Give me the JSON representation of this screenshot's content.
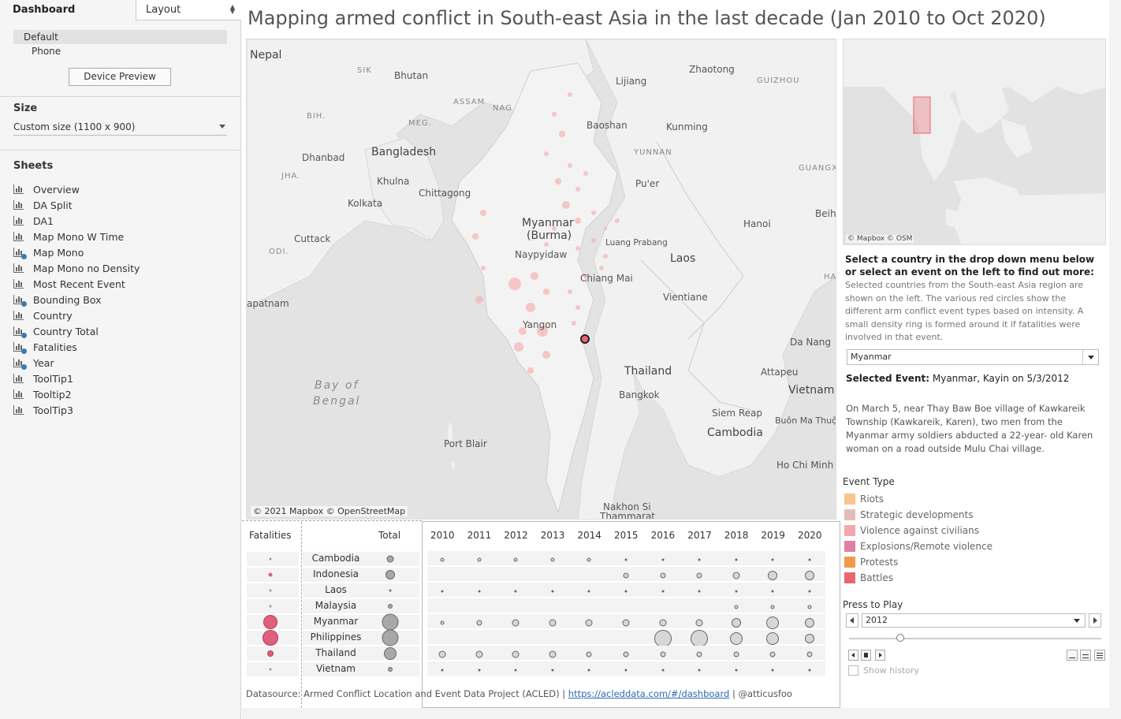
{
  "authoring": {
    "tab_dashboard": "Dashboard",
    "tab_layout": "Layout",
    "devices": [
      "Default",
      "Phone"
    ],
    "device_preview": "Device Preview",
    "size_heading": "Size",
    "size_value": "Custom size (1100 x 900)",
    "sheets_heading": "Sheets",
    "sheets": [
      {
        "label": "Overview",
        "used": false
      },
      {
        "label": "DA Split",
        "used": false
      },
      {
        "label": "DA1",
        "used": false
      },
      {
        "label": "Map Mono W Time",
        "used": false
      },
      {
        "label": "Map Mono",
        "used": true
      },
      {
        "label": "Map Mono no Density",
        "used": false
      },
      {
        "label": "Most Recent Event",
        "used": false
      },
      {
        "label": "Bounding Box",
        "used": true
      },
      {
        "label": "Country",
        "used": false
      },
      {
        "label": "Country Total",
        "used": true
      },
      {
        "label": "Fatalities",
        "used": true
      },
      {
        "label": "Year",
        "used": true
      },
      {
        "label": "ToolTip1",
        "used": false
      },
      {
        "label": "Tooltip2",
        "used": false
      },
      {
        "label": "ToolTip3",
        "used": false
      }
    ]
  },
  "dashboard": {
    "title": "Mapping armed conflict in South-east Asia in the last decade (Jan 2010 to Oct 2020)"
  },
  "map": {
    "labels": {
      "nepal": "Nepal",
      "sikkim": "SIK",
      "bhutan": "Bhutan",
      "assam": "ASSAM",
      "nagaland": "NAG",
      "bihar": "BIH.",
      "meghalaya": "MEG.",
      "bangladesh": "Bangladesh",
      "dhanbad": "Dhanbad",
      "jharkhand": "JHA.",
      "khulna": "Khulna",
      "chittagong": "Chittagong",
      "kolkata": "Kolkata",
      "cuttack": "Cuttack",
      "odisha": "ODI.",
      "apatnam": "apatnam",
      "myanmar": "Myanmar",
      "burma": "(Burma)",
      "naypyidaw": "Naypyidaw",
      "yangon": "Yangon",
      "lijiang": "Lijiang",
      "zhaotong": "Zhaotong",
      "guizhou": "GUIZHOU",
      "baoshan": "Baoshan",
      "kunming": "Kunming",
      "yunnan": "YUNNAN",
      "guangxi": "GUANGX",
      "puer": "Pu'er",
      "beihai": "Beih",
      "hanoi": "Hanoi",
      "laos": "Laos",
      "luang": "Luang Prabang",
      "chiangmai": "Chiang Mai",
      "vientiane": "Vientiane",
      "ha": "HA",
      "danang": "Da Nang",
      "thailand": "Thailand",
      "bangkok": "Bangkok",
      "attapeu": "Attapeu",
      "vietnam": "Vietnam",
      "siemreap": "Siem Reap",
      "cambodia": "Cambodia",
      "buonmathuot": "Buôn Ma Thuột",
      "hochiminh": "Ho Chi Minh",
      "portblair": "Port Blair",
      "nakhonsi": "Nakhon Si",
      "thammarat": "Thammarat",
      "bay": "Bay of",
      "bengal": "Bengal"
    },
    "attribution": "© 2021 Mapbox © OpenStreetMap"
  },
  "inset": {
    "attribution": "© Mapbox © OSM"
  },
  "info": {
    "prompt": "Select a country in the drop down menu below or select an event on the left to find out more:",
    "description": "Selected countries from the South-east Asia region are shown on the left. The various red circles show the different arm conflict event types based on intensity. A small density ring is formed around it if fatalities were involved in that event.",
    "country_selected": "Myanmar",
    "selected_event_label": "Selected Event:",
    "selected_event_value": "Myanmar, Kayin on 5/3/2012",
    "event_description": "On March 5, near Thay Baw Boe village of Kawkareik Township (Kawkareik, Karen), two men from the Myanmar army soldiers abducted a 22-year- old Karen woman on a road outside Mulu Chai village."
  },
  "legend": {
    "title": "Event Type",
    "items": [
      {
        "label": "Riots",
        "color": "#f9c48f"
      },
      {
        "label": "Strategic developments",
        "color": "#e2bdb8"
      },
      {
        "label": "Violence against civilians",
        "color": "#f5a8ac"
      },
      {
        "label": "Explosions/Remote violence",
        "color": "#e07fa4"
      },
      {
        "label": "Protests",
        "color": "#f09b4b"
      },
      {
        "label": "Battles",
        "color": "#e8676f"
      }
    ]
  },
  "play": {
    "title": "Press to Play",
    "year_value": "2012",
    "show_history": "Show history"
  },
  "table": {
    "fatalities_header": "Fatalities",
    "total_header": "Total",
    "years": [
      "2010",
      "2011",
      "2012",
      "2013",
      "2014",
      "2015",
      "2016",
      "2017",
      "2018",
      "2019",
      "2020"
    ],
    "countries": [
      "Cambodia",
      "Indonesia",
      "Laos",
      "Malaysia",
      "Myanmar",
      "Philippines",
      "Thailand",
      "Vietnam"
    ],
    "fatalities_level": [
      1,
      2,
      1,
      1,
      5,
      6,
      3,
      1
    ],
    "total_level": [
      3,
      4,
      1,
      2,
      6,
      6,
      5,
      2
    ],
    "year_levels": [
      [
        2,
        2,
        2,
        2,
        2,
        1,
        1,
        1,
        1,
        1,
        1
      ],
      [
        0,
        0,
        0,
        0,
        0,
        3,
        3,
        3,
        4,
        5,
        5
      ],
      [
        1,
        1,
        1,
        1,
        1,
        1,
        1,
        1,
        1,
        1,
        1
      ],
      [
        0,
        0,
        0,
        0,
        0,
        0,
        0,
        0,
        2,
        2,
        2
      ],
      [
        2,
        3,
        4,
        4,
        4,
        4,
        4,
        4,
        5,
        6,
        5
      ],
      [
        0,
        0,
        0,
        0,
        0,
        0,
        7,
        7,
        6,
        6,
        5
      ],
      [
        4,
        4,
        4,
        4,
        3,
        3,
        3,
        3,
        3,
        3,
        3
      ],
      [
        1,
        1,
        1,
        1,
        1,
        1,
        1,
        1,
        1,
        1,
        1
      ]
    ],
    "datasource_prefix": "Datasource: Armed Conflict Location and Event Data Project (ACLED)  |",
    "datasource_link": "https://acleddata.com/#/dashboard",
    "datasource_suffix": "| @atticusfoo"
  },
  "colors": {
    "fatality": "#e0607a",
    "total": "#a8a8a8",
    "year": "#d7d7d7",
    "map_water": "#e2e2e2",
    "map_land": "#f1f1f1"
  }
}
